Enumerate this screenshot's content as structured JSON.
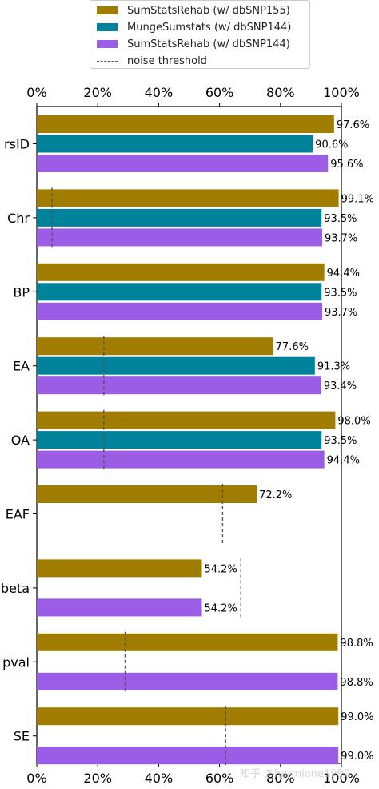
{
  "chart_data": {
    "type": "bar",
    "orientation": "horizontal",
    "categories": [
      "rsID",
      "Chr",
      "BP",
      "EA",
      "OA",
      "EAF",
      "beta",
      "pval",
      "SE"
    ],
    "series": [
      {
        "name": "SumStatsRehab (w/ dbSNP155)",
        "color": "#a07c00",
        "values": [
          97.6,
          99.1,
          94.4,
          77.6,
          98.0,
          72.2,
          54.2,
          98.8,
          99.0
        ],
        "labels": [
          "97.6%",
          "99.1%",
          "94.4%",
          "77.6%",
          "98.0%",
          "72.2%",
          "54.2%",
          "98.8%",
          "99.0%"
        ]
      },
      {
        "name": "MungeSumstats (w/ dbSNP144)",
        "color": "#00839a",
        "values": [
          90.6,
          93.5,
          93.5,
          91.3,
          93.5,
          null,
          null,
          null,
          null
        ],
        "labels": [
          "90.6%",
          "93.5%",
          "93.5%",
          "91.3%",
          "93.5%",
          "",
          "",
          "",
          ""
        ]
      },
      {
        "name": "SumStatsRehab (w/ dbSNP144)",
        "color": "#9b5de5",
        "values": [
          95.6,
          93.7,
          93.7,
          93.4,
          94.4,
          null,
          54.2,
          98.8,
          99.0
        ],
        "labels": [
          "95.6%",
          "93.7%",
          "93.7%",
          "93.4%",
          "94.4%",
          "",
          "54.2%",
          "98.8%",
          "99.0%"
        ]
      }
    ],
    "noise_threshold": {
      "name": "noise threshold",
      "color": "#555555",
      "values": [
        null,
        5,
        null,
        22,
        22,
        61,
        67,
        29,
        62
      ]
    },
    "xticks": [
      "0%",
      "20%",
      "40%",
      "60%",
      "80%",
      "100%"
    ],
    "xlim": [
      0,
      100
    ],
    "legend_position": "top"
  },
  "watermark": "知乎 @hermione1990"
}
